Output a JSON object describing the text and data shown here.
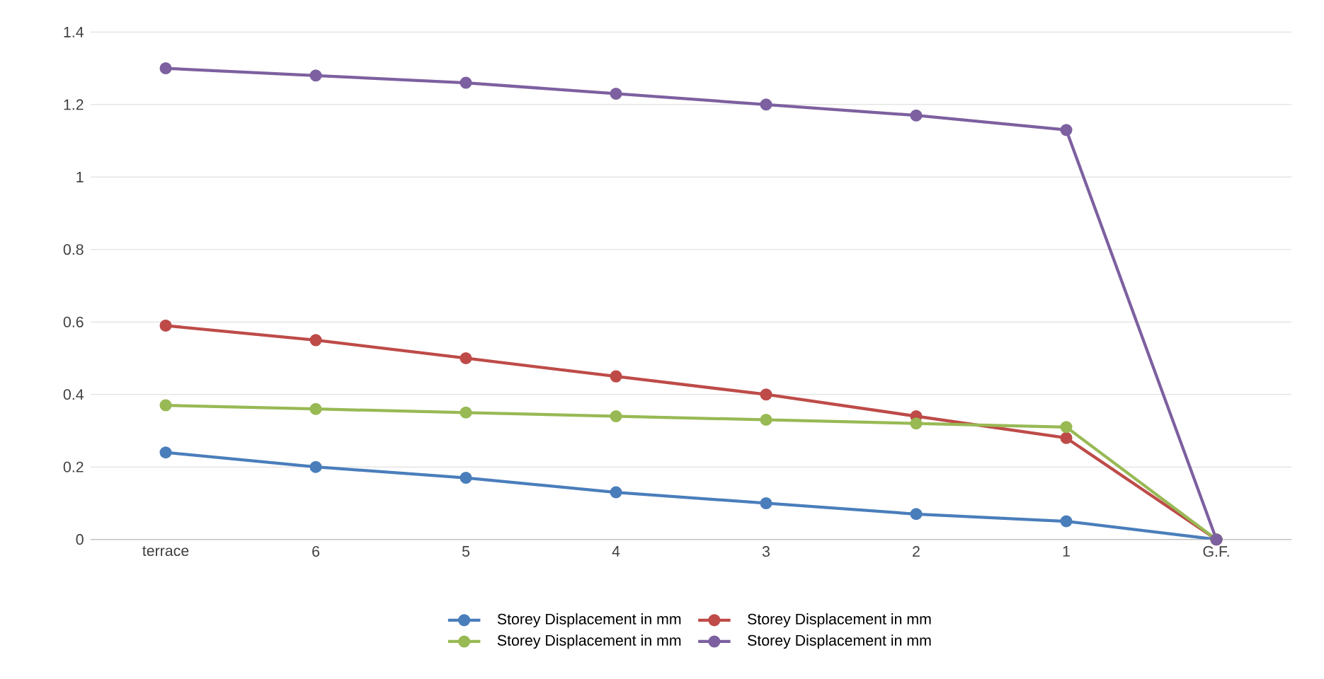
{
  "chart_data": {
    "type": "line",
    "categories": [
      "terrace",
      "6",
      "5",
      "4",
      "3",
      "2",
      "1",
      "G.F."
    ],
    "series": [
      {
        "name": "Storey Displacement in mm",
        "color": "#4a7ebb",
        "values": [
          0.24,
          0.2,
          0.17,
          0.13,
          0.1,
          0.07,
          0.05,
          0
        ]
      },
      {
        "name": "Storey Displacement in mm",
        "color": "#be4b48",
        "values": [
          0.59,
          0.55,
          0.5,
          0.45,
          0.4,
          0.34,
          0.28,
          0
        ]
      },
      {
        "name": "Storey Displacement in mm",
        "color": "#98b954",
        "values": [
          0.37,
          0.36,
          0.35,
          0.34,
          0.33,
          0.32,
          0.31,
          0
        ]
      },
      {
        "name": "Storey Displacement in mm",
        "color": "#7d60a0",
        "values": [
          1.3,
          1.28,
          1.26,
          1.23,
          1.2,
          1.17,
          1.13,
          0
        ]
      }
    ],
    "ylim": [
      0,
      1.4
    ],
    "yticks": [
      0,
      0.2,
      0.4,
      0.6,
      0.8,
      1,
      1.2,
      1.4
    ],
    "grid": "y",
    "legend": "bottom",
    "marker": "circle",
    "line_style": "solid"
  }
}
